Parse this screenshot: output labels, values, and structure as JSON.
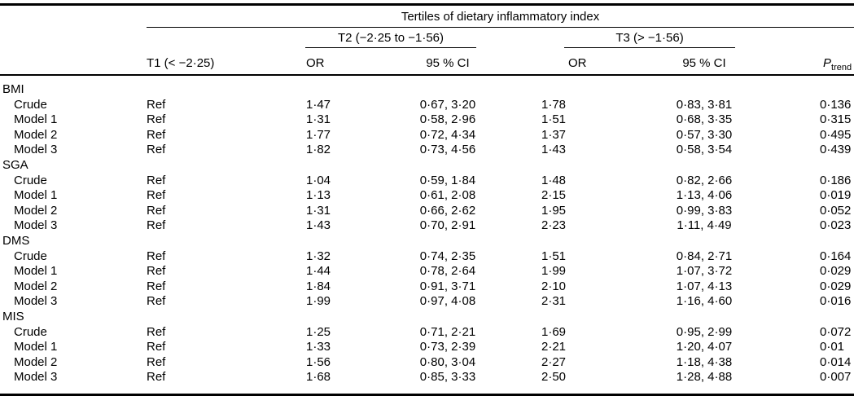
{
  "table": {
    "spanner_title": "Tertiles of dietary inflammatory index",
    "t1_header": "T1 (< −2·25)",
    "t2_spanner": "T2 (−2·25 to −1·56)",
    "t3_spanner": "T3 (> −1·56)",
    "or_header": "OR",
    "ci_header": "95 % CI",
    "p_header_main": "P",
    "p_header_sub": "trend",
    "sections": [
      {
        "name": "BMI",
        "rows": [
          {
            "label": "Crude",
            "t1": "Ref",
            "t2_or": "1·47",
            "t2_ci": "0·67, 3·20",
            "t3_or": "1·78",
            "t3_ci": "0·83, 3·81",
            "p": "0·136"
          },
          {
            "label": "Model 1",
            "t1": "Ref",
            "t2_or": "1·31",
            "t2_ci": "0·58, 2·96",
            "t3_or": "1·51",
            "t3_ci": "0·68, 3·35",
            "p": "0·315"
          },
          {
            "label": "Model 2",
            "t1": "Ref",
            "t2_or": "1·77",
            "t2_ci": "0·72, 4·34",
            "t3_or": "1·37",
            "t3_ci": "0·57, 3·30",
            "p": "0·495"
          },
          {
            "label": "Model 3",
            "t1": "Ref",
            "t2_or": "1·82",
            "t2_ci": "0·73, 4·56",
            "t3_or": "1·43",
            "t3_ci": "0·58, 3·54",
            "p": "0·439"
          }
        ]
      },
      {
        "name": "SGA",
        "rows": [
          {
            "label": "Crude",
            "t1": "Ref",
            "t2_or": "1·04",
            "t2_ci": "0·59, 1·84",
            "t3_or": "1·48",
            "t3_ci": "0·82, 2·66",
            "p": "0·186"
          },
          {
            "label": "Model 1",
            "t1": "Ref",
            "t2_or": "1·13",
            "t2_ci": "0·61, 2·08",
            "t3_or": "2·15",
            "t3_ci": "1·13, 4·06",
            "p": "0·019"
          },
          {
            "label": "Model 2",
            "t1": "Ref",
            "t2_or": "1·31",
            "t2_ci": "0·66, 2·62",
            "t3_or": "1·95",
            "t3_ci": "0·99, 3·83",
            "p": "0·052"
          },
          {
            "label": "Model 3",
            "t1": "Ref",
            "t2_or": "1·43",
            "t2_ci": "0·70, 2·91",
            "t3_or": "2·23",
            "t3_ci": "1·11, 4·49",
            "p": "0·023"
          }
        ]
      },
      {
        "name": "DMS",
        "rows": [
          {
            "label": "Crude",
            "t1": "Ref",
            "t2_or": "1·32",
            "t2_ci": "0·74, 2·35",
            "t3_or": "1·51",
            "t3_ci": "0·84, 2·71",
            "p": "0·164"
          },
          {
            "label": "Model 1",
            "t1": "Ref",
            "t2_or": "1·44",
            "t2_ci": "0·78, 2·64",
            "t3_or": "1·99",
            "t3_ci": "1·07, 3·72",
            "p": "0·029"
          },
          {
            "label": "Model 2",
            "t1": "Ref",
            "t2_or": "1·84",
            "t2_ci": "0·91, 3·71",
            "t3_or": "2·10",
            "t3_ci": "1·07, 4·13",
            "p": "0·029"
          },
          {
            "label": "Model 3",
            "t1": "Ref",
            "t2_or": "1·99",
            "t2_ci": "0·97, 4·08",
            "t3_or": "2·31",
            "t3_ci": "1·16, 4·60",
            "p": "0·016"
          }
        ]
      },
      {
        "name": "MIS",
        "rows": [
          {
            "label": "Crude",
            "t1": "Ref",
            "t2_or": "1·25",
            "t2_ci": "0·71, 2·21",
            "t3_or": "1·69",
            "t3_ci": "0·95, 2·99",
            "p": "0·072"
          },
          {
            "label": "Model 1",
            "t1": "Ref",
            "t2_or": "1·33",
            "t2_ci": "0·73, 2·39",
            "t3_or": "2·21",
            "t3_ci": "1·20, 4·07",
            "p": "0·01"
          },
          {
            "label": "Model 2",
            "t1": "Ref",
            "t2_or": "1·56",
            "t2_ci": "0·80, 3·04",
            "t3_or": "2·27",
            "t3_ci": "1·18, 4·38",
            "p": "0·014"
          },
          {
            "label": "Model 3",
            "t1": "Ref",
            "t2_or": "1·68",
            "t2_ci": "0·85, 3·33",
            "t3_or": "2·50",
            "t3_ci": "1·28, 4·88",
            "p": "0·007"
          }
        ]
      }
    ]
  }
}
